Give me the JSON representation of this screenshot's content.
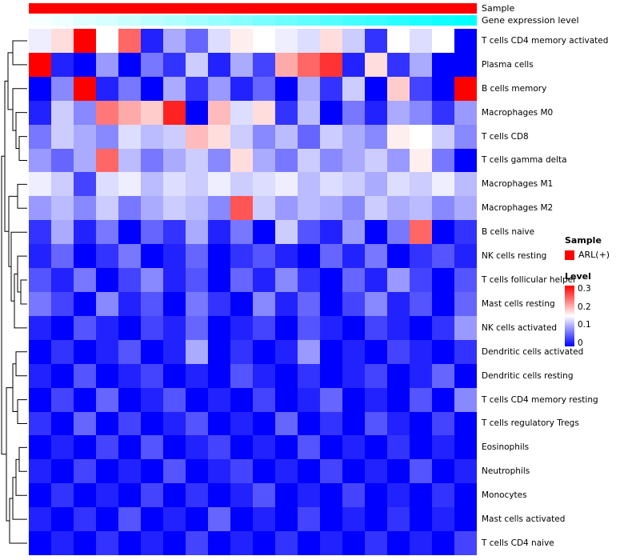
{
  "annotations": {
    "sample_label": "Sample",
    "expression_label": "Gene expression level"
  },
  "legend": {
    "sample_title": "Sample",
    "sample_items": [
      {
        "label": "ARL(+)",
        "color": "#FF0000"
      }
    ],
    "level_title": "Level",
    "level_ticks": [
      "0.3",
      "0.2",
      "0.1",
      "0"
    ],
    "level_colors": {
      "high": "#FF0000",
      "mid": "#FFFFFF",
      "low": "#0000FF"
    }
  },
  "chart_data": {
    "type": "heatmap",
    "title": "",
    "rows": [
      "T cells CD4 memory activated",
      "Plasma cells",
      "B cells memory",
      "Macrophages M0",
      "T cells CD8",
      "T cells gamma delta",
      "Macrophages M1",
      "Macrophages M2",
      "B cells naive",
      "NK cells resting",
      "T cells follicular helper",
      "Mast cells resting",
      "NK cells activated",
      "Dendritic cells activated",
      "Dendritic cells resting",
      "T cells CD4 memory resting",
      "T cells regulatory Tregs",
      "Eosinophils",
      "Neutrophils",
      "Monocytes",
      "Mast cells activated",
      "T cells CD4 naive"
    ],
    "n_columns": 20,
    "value_range": [
      0,
      0.3
    ],
    "colormap": {
      "min": "#0000FF",
      "mid": "#FFFFFF",
      "max": "#FF0000",
      "midpoint": 0.15
    },
    "column_annotations": {
      "sample": {
        "label": "ARL(+)",
        "color": "#FF0000"
      },
      "gene_expression_level": {
        "min_color": "#FFFFFF",
        "max_color": "#00FFFF",
        "values": [
          0.03,
          0.07,
          0.12,
          0.16,
          0.21,
          0.26,
          0.31,
          0.37,
          0.42,
          0.47,
          0.53,
          0.58,
          0.63,
          0.69,
          0.74,
          0.79,
          0.85,
          0.9,
          0.95,
          1.0
        ]
      }
    },
    "values": [
      [
        0.14,
        0.17,
        0.3,
        0.15,
        0.24,
        0.02,
        0.1,
        0.06,
        0.13,
        0.16,
        0.15,
        0.14,
        0.13,
        0.17,
        0.12,
        0.03,
        0.15,
        0.13,
        0.15,
        0.0
      ],
      [
        0.3,
        0.02,
        0.0,
        0.09,
        0.0,
        0.07,
        0.03,
        0.12,
        0.02,
        0.1,
        0.04,
        0.2,
        0.24,
        0.27,
        0.02,
        0.17,
        0.03,
        0.1,
        0.0,
        0.0
      ],
      [
        0.0,
        0.08,
        0.3,
        0.02,
        0.07,
        0.0,
        0.1,
        0.03,
        0.09,
        0.02,
        0.06,
        0.0,
        0.1,
        0.03,
        0.12,
        0.0,
        0.18,
        0.04,
        0.0,
        0.3
      ],
      [
        0.02,
        0.12,
        0.08,
        0.23,
        0.2,
        0.18,
        0.28,
        0.0,
        0.19,
        0.13,
        0.17,
        0.03,
        0.11,
        0.0,
        0.07,
        0.02,
        0.1,
        0.08,
        0.03,
        0.09
      ],
      [
        0.07,
        0.12,
        0.1,
        0.08,
        0.13,
        0.11,
        0.12,
        0.19,
        0.17,
        0.12,
        0.08,
        0.11,
        0.06,
        0.12,
        0.1,
        0.08,
        0.16,
        0.15,
        0.12,
        0.08
      ],
      [
        0.09,
        0.06,
        0.1,
        0.24,
        0.11,
        0.07,
        0.1,
        0.12,
        0.08,
        0.17,
        0.1,
        0.07,
        0.12,
        0.08,
        0.1,
        0.12,
        0.09,
        0.16,
        0.07,
        0.0
      ],
      [
        0.14,
        0.12,
        0.04,
        0.13,
        0.14,
        0.11,
        0.13,
        0.12,
        0.14,
        0.12,
        0.13,
        0.14,
        0.11,
        0.13,
        0.12,
        0.1,
        0.13,
        0.12,
        0.14,
        0.11
      ],
      [
        0.09,
        0.11,
        0.08,
        0.12,
        0.07,
        0.1,
        0.12,
        0.11,
        0.08,
        0.25,
        0.12,
        0.09,
        0.11,
        0.1,
        0.08,
        0.12,
        0.1,
        0.11,
        0.08,
        0.1
      ],
      [
        0.03,
        0.1,
        0.02,
        0.07,
        0.0,
        0.06,
        0.03,
        0.1,
        0.02,
        0.07,
        0.0,
        0.12,
        0.05,
        0.02,
        0.09,
        0.0,
        0.07,
        0.24,
        0.0,
        0.03
      ],
      [
        0.02,
        0.06,
        0.0,
        0.03,
        0.07,
        0.0,
        0.02,
        0.06,
        0.0,
        0.03,
        0.05,
        0.02,
        0.0,
        0.06,
        0.02,
        0.07,
        0.0,
        0.03,
        0.05,
        0.02
      ],
      [
        0.05,
        0.02,
        0.07,
        0.0,
        0.04,
        0.08,
        0.02,
        0.05,
        0.0,
        0.06,
        0.02,
        0.08,
        0.03,
        0.0,
        0.06,
        0.02,
        0.09,
        0.04,
        0.0,
        0.05
      ],
      [
        0.07,
        0.04,
        0.0,
        0.08,
        0.02,
        0.05,
        0.0,
        0.07,
        0.03,
        0.0,
        0.08,
        0.02,
        0.06,
        0.0,
        0.04,
        0.08,
        0.02,
        0.05,
        0.0,
        0.06
      ],
      [
        0.02,
        0.0,
        0.05,
        0.02,
        0.0,
        0.04,
        0.02,
        0.06,
        0.0,
        0.02,
        0.04,
        0.0,
        0.05,
        0.02,
        0.0,
        0.04,
        0.02,
        0.0,
        0.03,
        0.09
      ],
      [
        0.0,
        0.03,
        0.0,
        0.02,
        0.05,
        0.0,
        0.02,
        0.1,
        0.0,
        0.03,
        0.0,
        0.02,
        0.09,
        0.0,
        0.02,
        0.0,
        0.04,
        0.02,
        0.0,
        0.03
      ],
      [
        0.02,
        0.0,
        0.05,
        0.0,
        0.02,
        0.04,
        0.0,
        0.02,
        0.0,
        0.05,
        0.02,
        0.0,
        0.03,
        0.0,
        0.02,
        0.04,
        0.0,
        0.02,
        0.06,
        0.0
      ],
      [
        0.0,
        0.04,
        0.0,
        0.06,
        0.0,
        0.02,
        0.05,
        0.0,
        0.02,
        0.0,
        0.04,
        0.0,
        0.02,
        0.06,
        0.0,
        0.02,
        0.0,
        0.05,
        0.0,
        0.08
      ],
      [
        0.03,
        0.0,
        0.06,
        0.0,
        0.04,
        0.0,
        0.02,
        0.05,
        0.0,
        0.02,
        0.0,
        0.06,
        0.0,
        0.03,
        0.0,
        0.05,
        0.02,
        0.0,
        0.04,
        0.0
      ],
      [
        0.0,
        0.02,
        0.0,
        0.04,
        0.0,
        0.05,
        0.0,
        0.02,
        0.04,
        0.0,
        0.02,
        0.0,
        0.05,
        0.0,
        0.02,
        0.0,
        0.03,
        0.0,
        0.02,
        0.0
      ],
      [
        0.02,
        0.0,
        0.04,
        0.0,
        0.02,
        0.0,
        0.05,
        0.0,
        0.02,
        0.04,
        0.0,
        0.02,
        0.0,
        0.04,
        0.0,
        0.02,
        0.0,
        0.05,
        0.0,
        0.02
      ],
      [
        0.0,
        0.03,
        0.0,
        0.02,
        0.0,
        0.04,
        0.0,
        0.03,
        0.0,
        0.02,
        0.05,
        0.0,
        0.02,
        0.0,
        0.04,
        0.0,
        0.02,
        0.0,
        0.03,
        0.0
      ],
      [
        0.02,
        0.0,
        0.03,
        0.0,
        0.05,
        0.0,
        0.02,
        0.0,
        0.06,
        0.0,
        0.02,
        0.0,
        0.04,
        0.0,
        0.02,
        0.0,
        0.03,
        0.0,
        0.02,
        0.0
      ],
      [
        0.0,
        0.02,
        0.0,
        0.03,
        0.0,
        0.02,
        0.0,
        0.04,
        0.0,
        0.02,
        0.0,
        0.03,
        0.0,
        0.02,
        0.0,
        0.03,
        0.0,
        0.02,
        0.0,
        0.04
      ]
    ]
  }
}
